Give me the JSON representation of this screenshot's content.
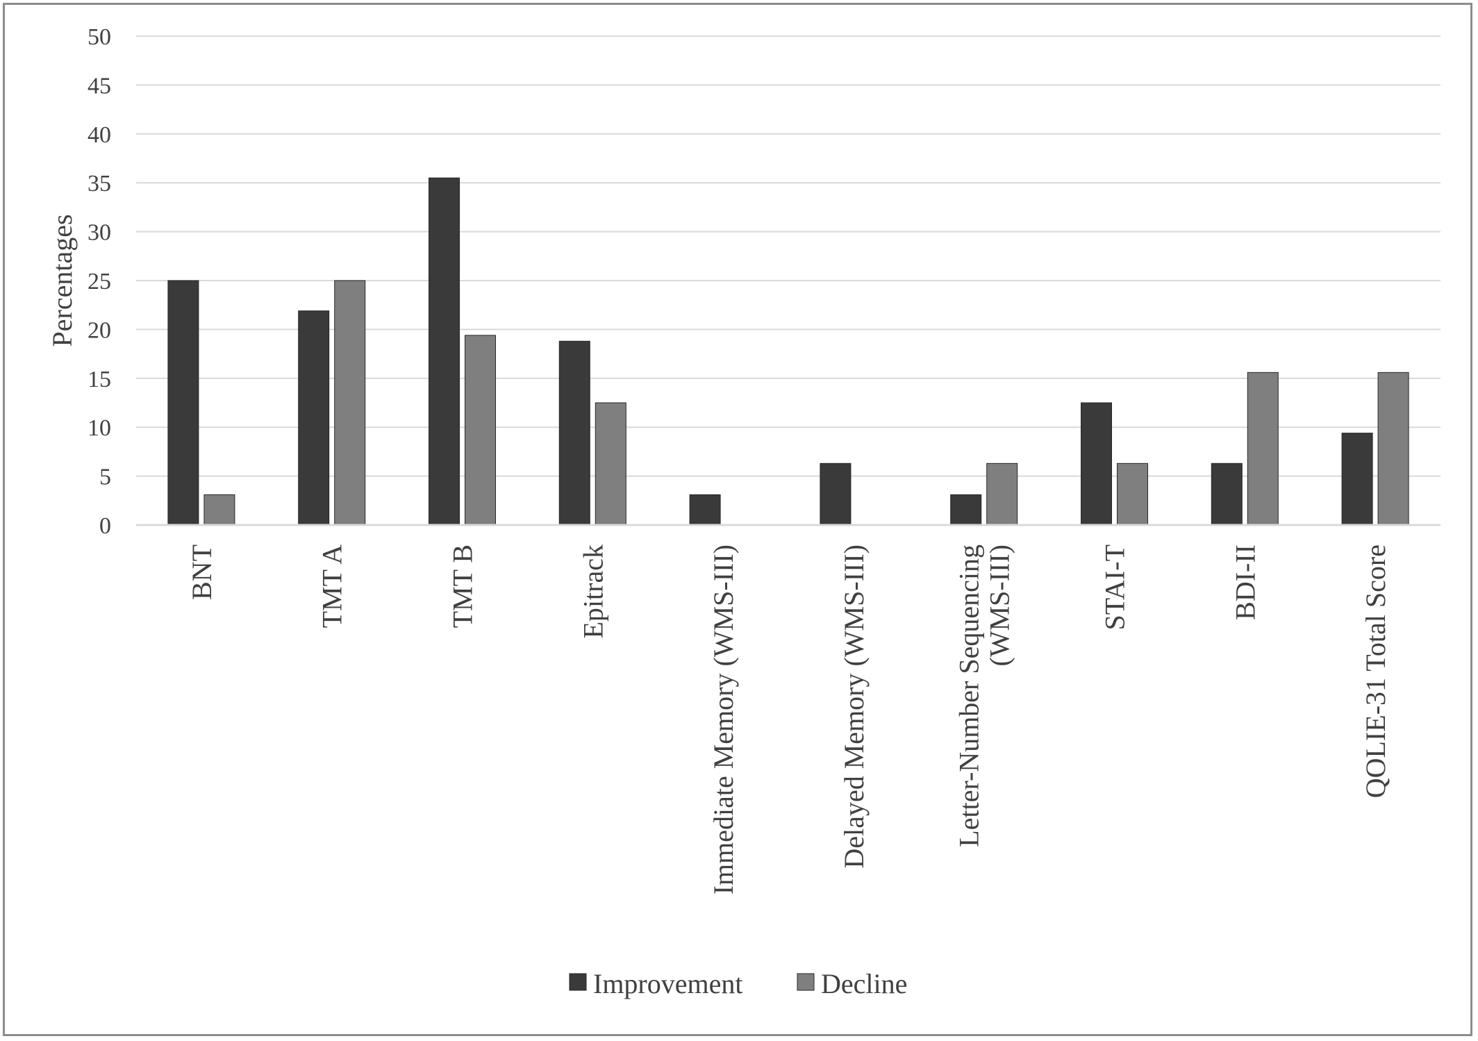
{
  "chart_data": {
    "type": "bar",
    "title": "",
    "xlabel": "",
    "ylabel": "Percentages",
    "ylim": [
      0,
      50
    ],
    "yticks": [
      0,
      5,
      10,
      15,
      20,
      25,
      30,
      35,
      40,
      45,
      50
    ],
    "grid": true,
    "legend_position": "bottom",
    "categories": [
      "BNT",
      "TMT A",
      "TMT B",
      "Epitrack",
      "Immediate Memory (WMS-III)",
      "Delayed Memory (WMS-III)",
      "Letter-Number Sequencing (WMS-III)",
      "STAI-T",
      "BDI-II",
      "QOLIE-31 Total Score"
    ],
    "category_label_lines": [
      [
        "BNT"
      ],
      [
        "TMT A"
      ],
      [
        "TMT B"
      ],
      [
        "Epitrack"
      ],
      [
        "Immediate Memory (WMS-III)"
      ],
      [
        "Delayed Memory (WMS-III)"
      ],
      [
        "Letter-Number Sequencing",
        "(WMS-III)"
      ],
      [
        "STAI-T"
      ],
      [
        "BDI-II"
      ],
      [
        "QOLIE-31 Total Score"
      ]
    ],
    "series": [
      {
        "name": "Improvement",
        "color": "#3a3a3a",
        "values": [
          25,
          21.9,
          35.5,
          18.8,
          3.1,
          6.3,
          3.1,
          12.5,
          6.3,
          9.4
        ]
      },
      {
        "name": "Decline",
        "color": "#7f7f7f",
        "values": [
          3.1,
          25,
          19.4,
          12.5,
          0,
          0,
          6.3,
          6.3,
          15.6,
          15.6
        ]
      }
    ]
  }
}
